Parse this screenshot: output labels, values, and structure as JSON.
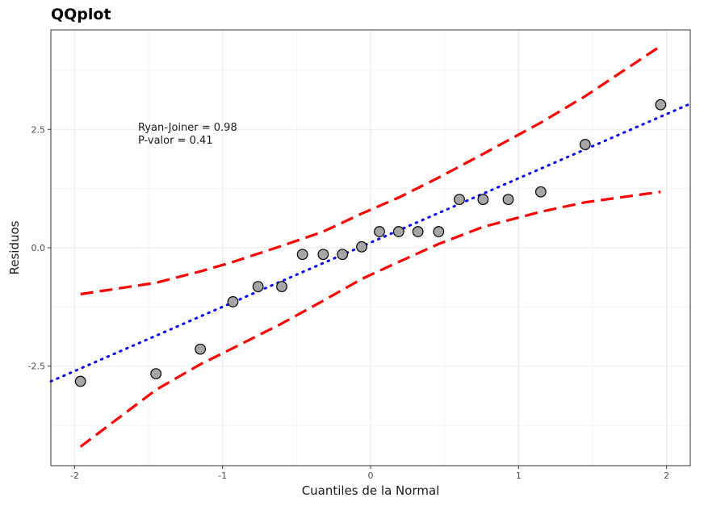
{
  "chart_data": {
    "type": "scatter",
    "title": "QQplot",
    "xlabel": "Cuantiles de la Normal",
    "ylabel": "Residuos",
    "xlim": [
      -2.16,
      2.16
    ],
    "ylim": [
      -4.6,
      4.6
    ],
    "x_ticks": [
      -2,
      -1,
      0,
      1,
      2
    ],
    "x_tick_labels": [
      "-2",
      "-1",
      "0",
      "1",
      "2"
    ],
    "y_ticks": [
      -2.5,
      0.0,
      2.5
    ],
    "y_tick_labels": [
      "-2.5",
      "0.0",
      "2.5"
    ],
    "grid": true,
    "annotations": [
      "Ryan-Joiner = 0.98",
      "P-valor = 0.41"
    ],
    "points": {
      "name": "Residuos",
      "x": [
        -1.96,
        -1.45,
        -1.15,
        -0.93,
        -0.76,
        -0.6,
        -0.46,
        -0.32,
        -0.19,
        -0.06,
        0.06,
        0.19,
        0.32,
        0.46,
        0.6,
        0.76,
        0.93,
        1.15,
        1.45,
        1.96
      ],
      "y": [
        -2.82,
        -2.66,
        -2.14,
        -1.14,
        -0.82,
        -0.82,
        -0.14,
        -0.14,
        -0.14,
        0.02,
        0.34,
        0.34,
        0.34,
        0.34,
        1.02,
        1.02,
        1.02,
        1.18,
        2.18,
        3.02
      ],
      "fill": "#a6a6a6",
      "stroke": "#000000"
    },
    "reference_line": {
      "name": "Recta de referencia",
      "x": [
        -2.16,
        2.16
      ],
      "y": [
        -2.82,
        3.04
      ],
      "color": "#0000ff",
      "style": "dotted"
    },
    "upper_band": {
      "name": "Banda superior",
      "x": [
        -1.96,
        -1.45,
        -1.15,
        -0.93,
        -0.6,
        -0.32,
        -0.06,
        0.19,
        0.46,
        0.76,
        1.15,
        1.45,
        1.96
      ],
      "y": [
        -0.98,
        -0.74,
        -0.5,
        -0.3,
        0.04,
        0.34,
        0.72,
        1.06,
        1.48,
        1.98,
        2.64,
        3.2,
        4.26
      ],
      "color": "#ff0000",
      "style": "dashed"
    },
    "lower_band": {
      "name": "Banda inferior",
      "x": [
        -1.96,
        -1.45,
        -1.15,
        -0.93,
        -0.6,
        -0.32,
        -0.06,
        0.19,
        0.46,
        0.76,
        1.15,
        1.45,
        1.96
      ],
      "y": [
        -4.2,
        -3.0,
        -2.46,
        -2.12,
        -1.6,
        -1.12,
        -0.66,
        -0.3,
        0.08,
        0.44,
        0.76,
        0.96,
        1.18
      ],
      "color": "#ff0000",
      "style": "dashed"
    }
  }
}
